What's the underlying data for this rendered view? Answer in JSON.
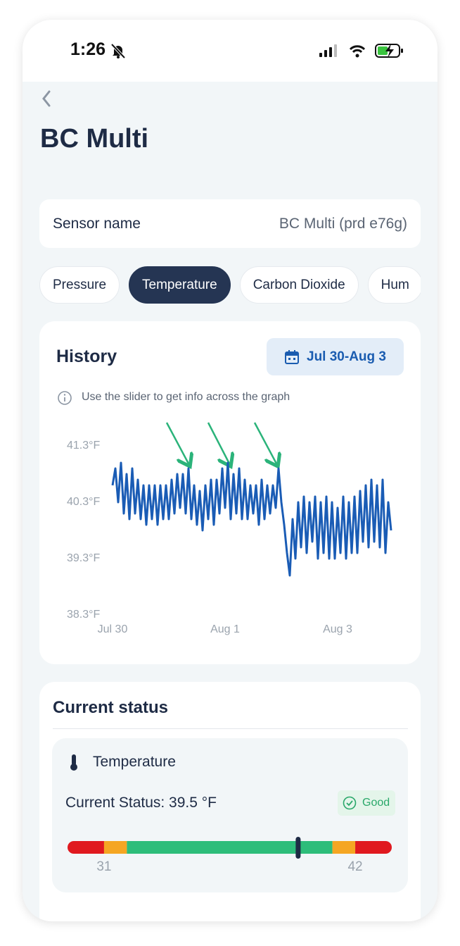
{
  "status_bar": {
    "time": "1:26"
  },
  "header": {
    "title": "BC Multi"
  },
  "sensor": {
    "label": "Sensor name",
    "value": "BC Multi (prd e76g)"
  },
  "tabs": {
    "items": [
      "Pressure",
      "Temperature",
      "Carbon Dioxide",
      "Hum"
    ],
    "selected": 1
  },
  "history": {
    "title": "History",
    "date_range": "Jul 30-Aug 3",
    "hint": "Use the slider to get info across the graph"
  },
  "chart_data": {
    "type": "line",
    "color": "#1a5cb5",
    "values": [
      40.6,
      40.9,
      40.3,
      41.0,
      40.1,
      40.8,
      40.0,
      40.9,
      40.1,
      40.7,
      40.0,
      40.6,
      39.9,
      40.6,
      40.0,
      40.6,
      39.9,
      40.6,
      40.0,
      40.6,
      40.0,
      40.7,
      40.1,
      40.8,
      40.2,
      40.8,
      40.1,
      40.9,
      40.0,
      40.6,
      39.9,
      40.5,
      39.8,
      40.6,
      40.0,
      40.7,
      39.9,
      40.7,
      40.1,
      40.9,
      40.2,
      41.0,
      40.0,
      40.8,
      40.1,
      40.9,
      40.0,
      40.7,
      40.0,
      40.6,
      40.1,
      40.6,
      39.9,
      40.7,
      40.0,
      40.6,
      40.1,
      40.6,
      40.2,
      40.9,
      40.3,
      39.9,
      39.4,
      39.0,
      40.0,
      39.3,
      40.3,
      39.5,
      40.4,
      39.4,
      40.3,
      39.6,
      40.4,
      39.3,
      40.3,
      39.4,
      40.4,
      39.3,
      40.3,
      39.3,
      40.2,
      39.4,
      40.4,
      39.3,
      40.3,
      39.4,
      40.4,
      39.4,
      40.5,
      39.6,
      40.6,
      39.5,
      40.7,
      39.6,
      40.6,
      39.5,
      40.7,
      39.4,
      40.3,
      39.8
    ],
    "xlim": [
      0,
      99
    ],
    "xticks": [
      {
        "value": 0,
        "label": "Jul 30"
      },
      {
        "value": 40,
        "label": "Aug 1"
      },
      {
        "value": 80,
        "label": "Aug 3"
      }
    ],
    "ylim": [
      38.3,
      41.3
    ],
    "yticks": [
      {
        "value": 41.3,
        "label": "41.3°F"
      },
      {
        "value": 40.3,
        "label": "40.3°F"
      },
      {
        "value": 39.3,
        "label": "39.3°F"
      },
      {
        "value": 38.3,
        "label": "38.3°F"
      }
    ],
    "grid": false
  },
  "current_status": {
    "title": "Current status",
    "sensor": "Temperature",
    "reading": "Current Status: 39.5 °F",
    "badge": "Good",
    "gauge": {
      "lim": [
        29.4,
        43.6
      ],
      "value": 39.5,
      "ticks": [
        31,
        42
      ],
      "zones": [
        {
          "from": 29.4,
          "to": 31,
          "color": "#e0191f"
        },
        {
          "from": 31,
          "to": 32,
          "color": "#f5a623"
        },
        {
          "from": 32,
          "to": 41,
          "color": "#2dbd7a"
        },
        {
          "from": 41,
          "to": 42,
          "color": "#f5a623"
        },
        {
          "from": 42,
          "to": 43.6,
          "color": "#e0191f"
        }
      ]
    }
  }
}
